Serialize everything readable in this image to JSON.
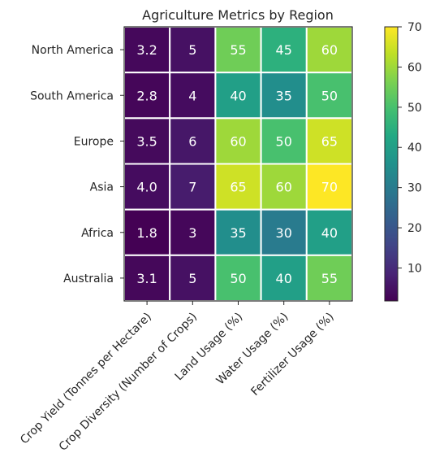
{
  "chart_data": {
    "type": "heatmap",
    "title": "Agriculture Metrics by Region",
    "rows": [
      "North America",
      "South America",
      "Europe",
      "Asia",
      "Africa",
      "Australia"
    ],
    "columns": [
      "Crop Yield (Tonnes per Hectare)",
      "Crop Diversity (Number of Crops)",
      "Land Usage (%)",
      "Water Usage (%)",
      "Fertilizer Usage (%)"
    ],
    "values": [
      [
        3.2,
        5,
        55,
        45,
        60
      ],
      [
        2.8,
        4,
        40,
        35,
        50
      ],
      [
        3.5,
        6,
        60,
        50,
        65
      ],
      [
        4.0,
        7,
        65,
        60,
        70
      ],
      [
        1.8,
        3,
        35,
        30,
        40
      ],
      [
        3.1,
        5,
        50,
        40,
        55
      ]
    ],
    "value_labels": [
      [
        "3.2",
        "5",
        "55",
        "45",
        "60"
      ],
      [
        "2.8",
        "4",
        "40",
        "35",
        "50"
      ],
      [
        "3.5",
        "6",
        "60",
        "50",
        "65"
      ],
      [
        "4.0",
        "7",
        "65",
        "60",
        "70"
      ],
      [
        "1.8",
        "3",
        "35",
        "30",
        "40"
      ],
      [
        "3.1",
        "5",
        "50",
        "40",
        "55"
      ]
    ],
    "colormap": "viridis",
    "vmin": 1.8,
    "vmax": 70,
    "colorbar_ticks": [
      10,
      20,
      30,
      40,
      50,
      60,
      70
    ],
    "colorbar_tick_labels": [
      "10",
      "20",
      "30",
      "40",
      "50",
      "60",
      "70"
    ],
    "cell_separator_color": "#ffffff",
    "value_label_color": "#ffffff"
  }
}
